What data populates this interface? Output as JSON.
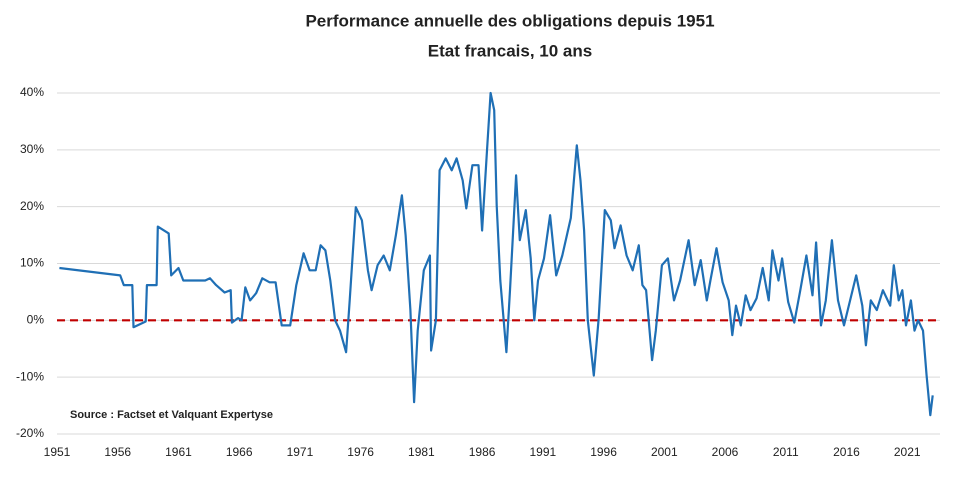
{
  "chart_data": {
    "type": "line",
    "title": "Performance annuelle des obligations depuis 1951",
    "subtitle": "Etat francais, 10 ans",
    "annotation": "Source : Factset et Valquant Expertyse",
    "color": "#1f6fb5",
    "reference_line": {
      "value": 0,
      "color": "#c00000",
      "dashed": true
    },
    "grid": true,
    "xlim": [
      1951,
      2023.7
    ],
    "ylim": [
      -20,
      40
    ],
    "xticks": [
      1951,
      1956,
      1961,
      1966,
      1971,
      1976,
      1981,
      1986,
      1991,
      1996,
      2001,
      2006,
      2011,
      2016,
      2021
    ],
    "yticks": [
      {
        "value": -20,
        "label": "-20%"
      },
      {
        "value": -10,
        "label": "-10%"
      },
      {
        "value": 0,
        "label": "0%"
      },
      {
        "value": 10,
        "label": "10%"
      },
      {
        "value": 20,
        "label": "20%"
      },
      {
        "value": 30,
        "label": "30%"
      },
      {
        "value": 40,
        "label": "40%"
      }
    ],
    "x": [
      1951.2,
      1956.2,
      1956.5,
      1957.2,
      1957.3,
      1958.3,
      1958.4,
      1959.2,
      1959.3,
      1960.2,
      1960.4,
      1961.0,
      1961.4,
      1963.2,
      1963.6,
      1964.1,
      1964.8,
      1965.3,
      1965.4,
      1965.9,
      1966.2,
      1966.5,
      1966.9,
      1967.4,
      1967.9,
      1968.5,
      1969.0,
      1969.5,
      1970.2,
      1970.7,
      1971.3,
      1971.8,
      1972.3,
      1972.7,
      1973.1,
      1973.5,
      1973.9,
      1974.3,
      1974.8,
      1975.1,
      1975.6,
      1976.1,
      1976.6,
      1976.9,
      1977.4,
      1977.9,
      1978.4,
      1978.9,
      1979.4,
      1979.7,
      1980.1,
      1980.4,
      1980.7,
      1981.2,
      1981.7,
      1981.8,
      1982.2,
      1982.5,
      1983.0,
      1983.5,
      1983.9,
      1984.4,
      1984.7,
      1985.2,
      1985.7,
      1986.0,
      1986.4,
      1986.7,
      1987.0,
      1987.2,
      1987.5,
      1988.0,
      1988.3,
      1988.8,
      1989.1,
      1989.6,
      1990.0,
      1990.3,
      1990.6,
      1991.1,
      1991.6,
      1992.1,
      1992.6,
      1993.3,
      1993.8,
      1994.1,
      1994.4,
      1994.7,
      1995.2,
      1995.6,
      1996.1,
      1996.6,
      1996.9,
      1997.4,
      1997.9,
      1998.4,
      1998.9,
      1999.2,
      1999.5,
      2000.0,
      2000.3,
      2000.8,
      2001.3,
      2001.8,
      2002.3,
      2003.0,
      2003.5,
      2004.0,
      2004.5,
      2004.8,
      2005.3,
      2005.8,
      2006.3,
      2006.6,
      2006.9,
      2007.3,
      2007.7,
      2008.1,
      2008.6,
      2009.1,
      2009.6,
      2009.9,
      2010.4,
      2010.7,
      2011.2,
      2011.7,
      2012.2,
      2012.7,
      2013.2,
      2013.5,
      2013.9,
      2014.3,
      2014.8,
      2015.3,
      2015.8,
      2016.3,
      2016.8,
      2017.3,
      2017.6,
      2018.0,
      2018.5,
      2019.0,
      2019.6,
      2019.9,
      2020.3,
      2020.6,
      2020.9,
      2021.3,
      2021.6,
      2021.9,
      2022.3,
      2022.6,
      2022.9,
      2023.1
    ],
    "values": [
      9.2,
      7.9,
      6.2,
      6.2,
      -1.2,
      -0.2,
      6.2,
      6.2,
      16.5,
      15.3,
      7.9,
      9.2,
      7.0,
      7.0,
      7.4,
      6.2,
      4.9,
      5.3,
      -0.4,
      0.4,
      0,
      5.8,
      3.5,
      4.8,
      7.4,
      6.7,
      6.7,
      -0.9,
      -0.9,
      6.2,
      11.8,
      8.8,
      8.8,
      13.2,
      12.3,
      7.0,
      0,
      -1.8,
      -5.6,
      3.5,
      19.9,
      17.6,
      8.8,
      5.3,
      9.7,
      11.4,
      8.8,
      15.0,
      22.0,
      15.0,
      1.8,
      -14.4,
      -1.8,
      8.8,
      11.4,
      -5.3,
      0,
      26.4,
      28.5,
      26.4,
      28.5,
      24.6,
      19.7,
      27.3,
      27.3,
      15.8,
      29.9,
      40,
      37.0,
      20.2,
      7.0,
      -5.6,
      5.3,
      25.5,
      14.1,
      19.4,
      10.9,
      0,
      7.0,
      10.9,
      18.5,
      7.9,
      11.4,
      18.0,
      30.8,
      24.6,
      15.8,
      0,
      -9.7,
      0.4,
      19.4,
      17.6,
      12.7,
      16.7,
      11.4,
      8.8,
      13.2,
      6.2,
      5.3,
      -7.0,
      -1.8,
      9.7,
      10.9,
      3.5,
      7.0,
      14.1,
      6.2,
      10.6,
      3.5,
      7.0,
      12.7,
      6.7,
      3.5,
      -2.6,
      2.6,
      -0.9,
      4.4,
      1.8,
      3.9,
      9.2,
      3.5,
      12.3,
      7.0,
      10.9,
      3.2,
      -0.4,
      5.3,
      11.4,
      4.4,
      13.7,
      -0.9,
      3.5,
      14.1,
      3.5,
      -0.9,
      3.5,
      7.9,
      2.6,
      -4.4,
      3.5,
      1.8,
      5.3,
      2.6,
      9.7,
      3.5,
      5.3,
      -0.9,
      3.5,
      -1.8,
      0,
      -1.8,
      -9.7,
      -16.7,
      -13.2
    ]
  }
}
